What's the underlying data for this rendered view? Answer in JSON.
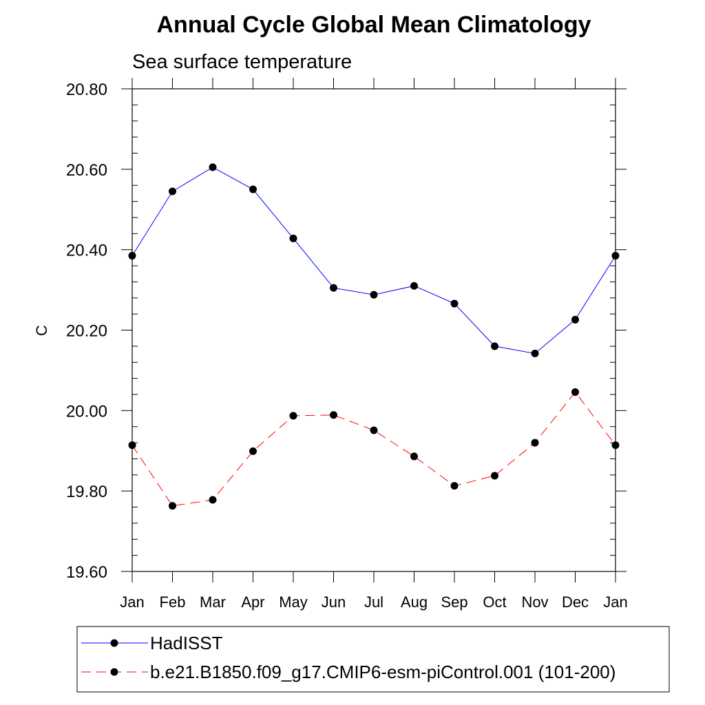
{
  "chart_data": {
    "type": "line",
    "title": "Annual Cycle Global Mean Climatology",
    "subtitle": "Sea surface temperature",
    "xlabel": "",
    "ylabel": "C",
    "categories": [
      "Jan",
      "Feb",
      "Mar",
      "Apr",
      "May",
      "Jun",
      "Jul",
      "Aug",
      "Sep",
      "Oct",
      "Nov",
      "Dec",
      "Jan"
    ],
    "ylim": [
      19.6,
      20.8
    ],
    "yticks": [
      19.6,
      19.8,
      20.0,
      20.2,
      20.4,
      20.6,
      20.8
    ],
    "ytick_labels": [
      "19.60",
      "19.80",
      "20.00",
      "20.20",
      "20.40",
      "20.60",
      "20.80"
    ],
    "series": [
      {
        "name": "HadISST",
        "color": "#0000ff",
        "line_style": "solid",
        "marker": "filled-circle",
        "values": [
          20.385,
          20.545,
          20.605,
          20.55,
          20.428,
          20.305,
          20.288,
          20.31,
          20.266,
          20.16,
          20.142,
          20.226,
          20.385
        ]
      },
      {
        "name": "b.e21.B1850.f09_g17.CMIP6-esm-piControl.001 (101-200)",
        "color": "#ff0000",
        "line_style": "dashed",
        "marker": "filled-circle",
        "values": [
          19.914,
          19.763,
          19.778,
          19.899,
          19.987,
          19.989,
          19.951,
          19.886,
          19.813,
          19.838,
          19.92,
          20.046,
          19.914
        ]
      }
    ],
    "legend_position": "bottom-below-plot"
  }
}
